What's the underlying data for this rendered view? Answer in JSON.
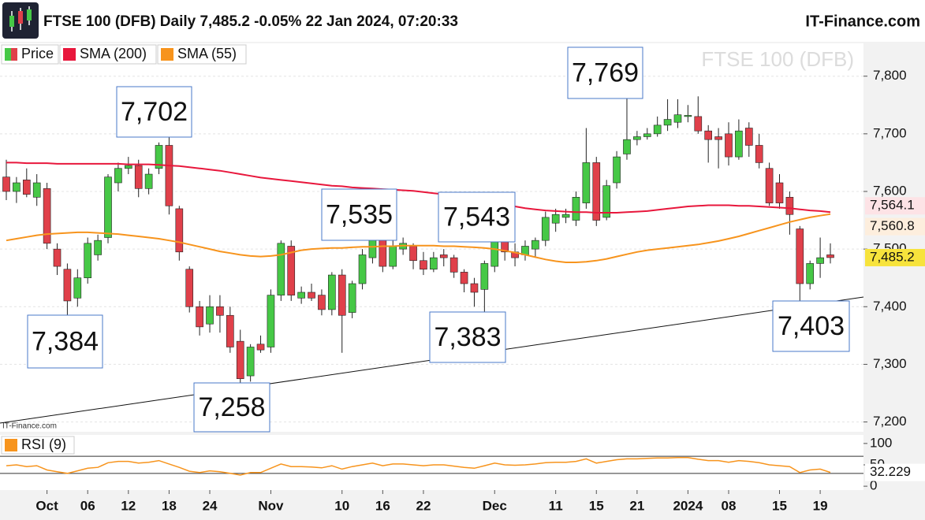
{
  "chart_data": {
    "type": "candlestick",
    "title": "FTSE 100 (DFB) Daily 7,485.2 -0.05% 22 Jan 2024, 07:20:33",
    "brand": "IT-Finance.com",
    "watermark": "FTSE 100 (DFB)",
    "source_note": "IT-Finance.com",
    "price_name": "Price",
    "up_color": "#46c846",
    "down_color": "#e0404a",
    "categories": [
      null,
      null,
      null,
      null,
      "Oct",
      null,
      null,
      null,
      "06",
      null,
      null,
      null,
      "12",
      null,
      null,
      null,
      "18",
      null,
      null,
      null,
      "24",
      null,
      null,
      null,
      null,
      null,
      "Nov",
      null,
      null,
      null,
      null,
      null,
      null,
      "10",
      null,
      null,
      null,
      "16",
      null,
      null,
      null,
      "22",
      null,
      null,
      null,
      null,
      null,
      null,
      "Dec",
      null,
      null,
      null,
      null,
      null,
      "11",
      null,
      null,
      null,
      "15",
      null,
      null,
      null,
      "21",
      null,
      null,
      null,
      null,
      "2024",
      null,
      null,
      null,
      "08",
      null,
      null,
      null,
      null,
      "15",
      null,
      null,
      null,
      "19",
      null
    ],
    "open": [
      7625,
      7600,
      7620,
      7590,
      7605,
      7500,
      7465,
      7415,
      7450,
      7490,
      7520,
      7615,
      7640,
      7645,
      7605,
      7640,
      7680,
      7570,
      7465,
      7400,
      7370,
      7400,
      7385,
      7340,
      7280,
      7335,
      7330,
      7420,
      7505,
      7415,
      7425,
      7420,
      7395,
      7455,
      7390,
      7440,
      7485,
      7515,
      7470,
      7500,
      7505,
      7480,
      7465,
      7490,
      7485,
      7460,
      7440,
      7430,
      7470,
      7530,
      7495,
      7490,
      7500,
      7515,
      7545,
      7555,
      7550,
      7580,
      7650,
      7555,
      7615,
      7665,
      7690,
      7695,
      7700,
      7715,
      7720,
      7730,
      7730,
      7705,
      7695,
      7700,
      7660,
      7710,
      7680,
      7640,
      7615,
      7590,
      7535,
      7440,
      7475,
      7490
    ],
    "high": [
      7655,
      7625,
      7640,
      7630,
      7615,
      7510,
      7475,
      7465,
      7520,
      7525,
      7630,
      7650,
      7660,
      7655,
      7640,
      7685,
      7702,
      7575,
      7470,
      7410,
      7420,
      7420,
      7400,
      7360,
      7335,
      7350,
      7430,
      7515,
      7515,
      7435,
      7440,
      7430,
      7460,
      7465,
      7445,
      7500,
      7535,
      7525,
      7515,
      7520,
      7510,
      7495,
      7495,
      7500,
      7490,
      7465,
      7450,
      7480,
      7543,
      7540,
      7510,
      7515,
      7520,
      7565,
      7570,
      7570,
      7600,
      7710,
      7660,
      7620,
      7670,
      7769,
      7705,
      7710,
      7730,
      7760,
      7760,
      7750,
      7765,
      7715,
      7710,
      7720,
      7725,
      7720,
      7700,
      7650,
      7630,
      7600,
      7540,
      7480,
      7520,
      7510
    ],
    "low": [
      7585,
      7580,
      7590,
      7575,
      7500,
      7455,
      7384,
      7400,
      7440,
      7480,
      7510,
      7600,
      7630,
      7590,
      7595,
      7630,
      7560,
      7480,
      7390,
      7350,
      7355,
      7355,
      7320,
      7258,
      7270,
      7320,
      7320,
      7410,
      7410,
      7405,
      7410,
      7385,
      7385,
      7320,
      7380,
      7430,
      7475,
      7460,
      7465,
      7490,
      7465,
      7455,
      7460,
      7470,
      7450,
      7425,
      7400,
      7383,
      7460,
      7480,
      7470,
      7480,
      7485,
      7505,
      7530,
      7545,
      7540,
      7570,
      7540,
      7550,
      7605,
      7655,
      7680,
      7690,
      7695,
      7705,
      7710,
      7720,
      7700,
      7650,
      7640,
      7645,
      7655,
      7660,
      7640,
      7575,
      7570,
      7525,
      7403,
      7430,
      7450,
      7475
    ],
    "close": [
      7600,
      7615,
      7595,
      7615,
      7510,
      7470,
      7410,
      7450,
      7510,
      7515,
      7625,
      7640,
      7645,
      7605,
      7630,
      7680,
      7575,
      7495,
      7400,
      7365,
      7400,
      7385,
      7330,
      7275,
      7330,
      7325,
      7420,
      7510,
      7420,
      7425,
      7415,
      7395,
      7455,
      7385,
      7440,
      7490,
      7520,
      7470,
      7505,
      7510,
      7480,
      7465,
      7485,
      7485,
      7460,
      7440,
      7425,
      7475,
      7530,
      7495,
      7485,
      7505,
      7515,
      7555,
      7560,
      7560,
      7590,
      7650,
      7550,
      7610,
      7660,
      7690,
      7695,
      7700,
      7715,
      7725,
      7733,
      7732,
      7705,
      7690,
      7690,
      7660,
      7705,
      7680,
      7650,
      7580,
      7580,
      7560,
      7440,
      7475,
      7485,
      7485.2
    ],
    "last_price_label": "7,485.2",
    "series": [
      {
        "name": "SMA (200)",
        "color": "#e8173c",
        "last_label": "7,564.1",
        "values": [
          7650,
          7650,
          7649,
          7649,
          7649,
          7648,
          7648,
          7648,
          7648,
          7648,
          7648,
          7648,
          7647,
          7647,
          7647,
          7646,
          7645,
          7644,
          7642,
          7640,
          7638,
          7636,
          7633,
          7630,
          7627,
          7624,
          7622,
          7620,
          7618,
          7616,
          7614,
          7612,
          7610,
          7609,
          7607,
          7606,
          7605,
          7604,
          7603,
          7602,
          7601,
          7599,
          7597,
          7595,
          7592,
          7589,
          7586,
          7583,
          7580,
          7577,
          7574,
          7571,
          7569,
          7567,
          7566,
          7565,
          7564,
          7564,
          7563,
          7563,
          7563,
          7564,
          7565,
          7566,
          7568,
          7570,
          7572,
          7574,
          7575,
          7576,
          7576,
          7576,
          7575,
          7575,
          7574,
          7573,
          7572,
          7571,
          7569,
          7567,
          7566,
          7564.1
        ]
      },
      {
        "name": "SMA (55)",
        "color": "#f7941d",
        "last_label": "7,560.8",
        "values": [
          7515,
          7518,
          7521,
          7524,
          7526,
          7527,
          7528,
          7529,
          7529,
          7528,
          7527,
          7526,
          7524,
          7522,
          7520,
          7518,
          7515,
          7512,
          7508,
          7504,
          7500,
          7496,
          7493,
          7490,
          7488,
          7487,
          7488,
          7490,
          7494,
          7498,
          7500,
          7501,
          7502,
          7502,
          7503,
          7504,
          7504,
          7505,
          7505,
          7506,
          7506,
          7506,
          7506,
          7505,
          7505,
          7504,
          7503,
          7502,
          7500,
          7497,
          7494,
          7490,
          7486,
          7482,
          7479,
          7477,
          7477,
          7478,
          7480,
          7483,
          7487,
          7491,
          7495,
          7498,
          7500,
          7502,
          7504,
          7506,
          7508,
          7511,
          7514,
          7518,
          7522,
          7527,
          7532,
          7537,
          7542,
          7547,
          7551,
          7555,
          7558,
          7560.8
        ]
      }
    ],
    "ylim": [
      7183,
      7857
    ],
    "yticks": [
      {
        "value": 7200,
        "label": "7,200"
      },
      {
        "value": 7300,
        "label": "7,300"
      },
      {
        "value": 7400,
        "label": "7,400"
      },
      {
        "value": 7500,
        "label": "7,500"
      },
      {
        "value": 7600,
        "label": "7,600"
      },
      {
        "value": 7700,
        "label": "7,700"
      },
      {
        "value": 7800,
        "label": "7,800"
      }
    ],
    "annotations": [
      "7,702",
      "7,384",
      "7,535",
      "7,543",
      "7,383",
      "7,258",
      "7,769",
      "7,403"
    ],
    "rsi": {
      "name": "RSI (9)",
      "color": "#f7941d",
      "last_label": "32.229",
      "values": [
        48,
        50,
        46,
        48,
        38,
        34,
        30,
        36,
        42,
        44,
        55,
        58,
        58,
        54,
        56,
        60,
        52,
        44,
        35,
        32,
        36,
        34,
        30,
        26,
        32,
        32,
        42,
        52,
        46,
        46,
        45,
        43,
        48,
        40,
        46,
        50,
        54,
        48,
        52,
        52,
        50,
        48,
        50,
        50,
        47,
        44,
        42,
        48,
        54,
        50,
        49,
        50,
        52,
        55,
        56,
        56,
        58,
        64,
        54,
        58,
        62,
        64,
        64,
        65,
        66,
        66,
        67,
        67,
        63,
        60,
        60,
        56,
        60,
        58,
        55,
        50,
        48,
        46,
        32,
        38,
        40,
        32.229
      ],
      "ylim": [
        -9,
        120
      ],
      "yticks": [
        0,
        50,
        100
      ],
      "levels": [
        70,
        30
      ]
    }
  }
}
